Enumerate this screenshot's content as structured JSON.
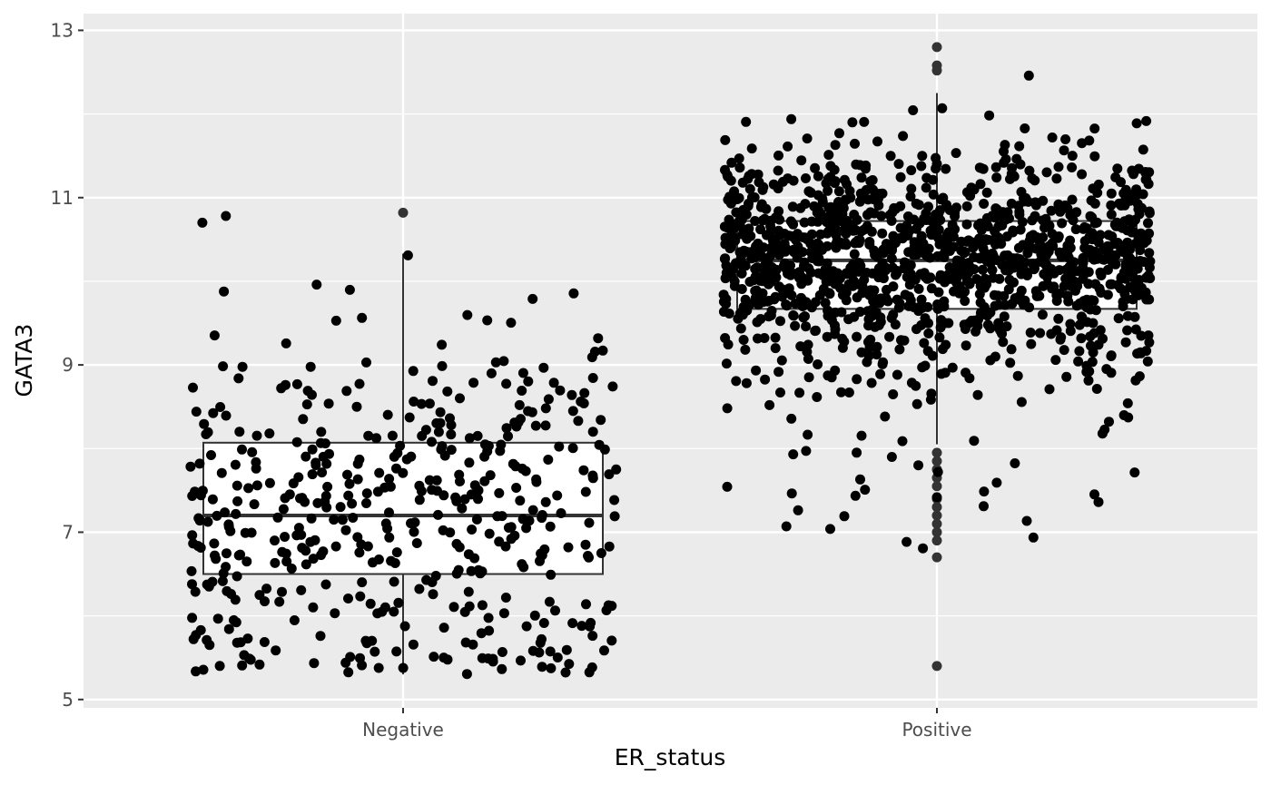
{
  "chart_data": {
    "type": "box-jitter",
    "xlabel": "ER_status",
    "ylabel": "GATA3",
    "categories": [
      "Negative",
      "Positive"
    ],
    "yticks": [
      5,
      7,
      9,
      11,
      13
    ],
    "ylim": [
      4.9,
      13.2
    ],
    "grid": true,
    "colors": {
      "panel": "#ebebeb",
      "grid": "#ffffff",
      "box_fill": "#ffffff",
      "box_line": "#333333",
      "points": "#000000"
    },
    "boxes": [
      {
        "category": "Negative",
        "lower_whisker": 5.3,
        "q1": 6.5,
        "median": 7.2,
        "q3": 8.07,
        "upper_whisker": 10.33,
        "outliers": [
          10.82
        ]
      },
      {
        "category": "Positive",
        "lower_whisker": 8.05,
        "q1": 9.67,
        "median": 10.25,
        "q3": 10.72,
        "upper_whisker": 12.25,
        "outliers": [
          12.8,
          12.58,
          12.52,
          7.95,
          7.85,
          7.75,
          7.65,
          7.55,
          7.4,
          7.3,
          7.2,
          7.1,
          7.0,
          6.9,
          6.7,
          5.4
        ]
      }
    ],
    "jitter_counts": [
      470,
      1300
    ],
    "jitter_ranges": [
      [
        5.3,
        10.8
      ],
      [
        5.4,
        12.8
      ]
    ]
  }
}
